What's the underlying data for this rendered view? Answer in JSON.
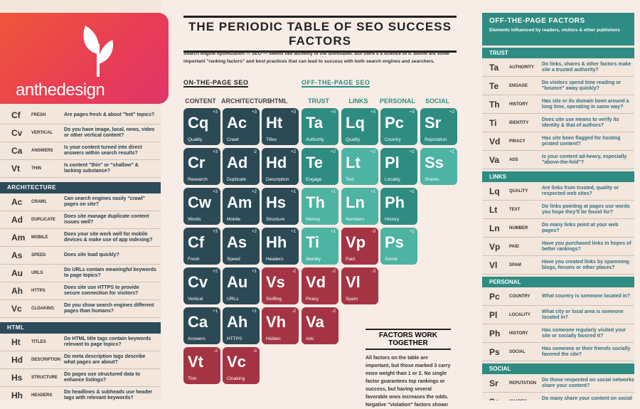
{
  "logo": {
    "text": "anthedesign"
  },
  "title": "THE PERIODIC TABLE OF SEO SUCCESS FACTORS",
  "intro": "Search engine optimization — SEO — seems like alchemy to the uninitiated. But there's a science to it. Below are some important \"ranking factors\" and best practices that can lead to success with both search engines and searchers.",
  "on_page_label": "ON-THE-PAGE SEO",
  "off_page_label": "OFF-THE-PAGE SEO",
  "columns": [
    "CONTENT",
    "ARCHITECTURE",
    "HTML",
    "TRUST",
    "LINKS",
    "PERSONAL",
    "SOCIAL"
  ],
  "colors": {
    "dark": "#2b4a56",
    "teal": "#2f8c82",
    "light": "#4db3a2",
    "red": "#a43444",
    "pink": "#b04a60"
  },
  "elements": [
    {
      "sym": "Cq",
      "word": "Quality",
      "wt": "+3",
      "c": "dk",
      "col": 0,
      "row": 0
    },
    {
      "sym": "Cr",
      "word": "Research",
      "wt": "+3",
      "c": "dk",
      "col": 0,
      "row": 1
    },
    {
      "sym": "Cw",
      "word": "Words",
      "wt": "+3",
      "c": "dk",
      "col": 0,
      "row": 2
    },
    {
      "sym": "Cf",
      "word": "Fresh",
      "wt": "+3",
      "c": "dk",
      "col": 0,
      "row": 3
    },
    {
      "sym": "Cv",
      "word": "Vertical",
      "wt": "+2",
      "c": "dk",
      "col": 0,
      "row": 4
    },
    {
      "sym": "Ca",
      "word": "Answers",
      "wt": "+1",
      "c": "dk",
      "col": 0,
      "row": 5
    },
    {
      "sym": "Vt",
      "word": "Thin",
      "wt": "-2",
      "c": "rd",
      "col": 0,
      "row": 6
    },
    {
      "sym": "Ac",
      "word": "Crawl",
      "wt": "+3",
      "c": "dk",
      "col": 1,
      "row": 0
    },
    {
      "sym": "Ad",
      "word": "Duplicate",
      "wt": "-2",
      "c": "dk",
      "col": 1,
      "row": 1
    },
    {
      "sym": "Am",
      "word": "Mobile",
      "wt": "+2",
      "c": "dk",
      "col": 1,
      "row": 2
    },
    {
      "sym": "As",
      "word": "Speed",
      "wt": "+2",
      "c": "dk",
      "col": 1,
      "row": 3
    },
    {
      "sym": "Au",
      "word": "URLs",
      "wt": "+1",
      "c": "dk",
      "col": 1,
      "row": 4
    },
    {
      "sym": "Ah",
      "word": "HTTPS",
      "wt": "+1",
      "c": "dk",
      "col": 1,
      "row": 5
    },
    {
      "sym": "Vc",
      "word": "Cloaking",
      "wt": "-3",
      "c": "rd",
      "col": 1,
      "row": 6
    },
    {
      "sym": "Ht",
      "word": "Titles",
      "wt": "+3",
      "c": "dk",
      "col": 2,
      "row": 0
    },
    {
      "sym": "Hd",
      "word": "Description",
      "wt": "+2",
      "c": "dk",
      "col": 2,
      "row": 1
    },
    {
      "sym": "Hs",
      "word": "Structure",
      "wt": "+1",
      "c": "dk",
      "col": 2,
      "row": 2
    },
    {
      "sym": "Hh",
      "word": "Headers",
      "wt": "+1",
      "c": "dk",
      "col": 2,
      "row": 3
    },
    {
      "sym": "Vs",
      "word": "Stuffing",
      "wt": "-2",
      "c": "rd",
      "col": 2,
      "row": 4
    },
    {
      "sym": "Vh",
      "word": "Hidden",
      "wt": "-2",
      "c": "rd",
      "col": 2,
      "row": 5
    },
    {
      "sym": "Ta",
      "word": "Authority",
      "wt": "+3",
      "c": "tl",
      "col": 3,
      "row": 0
    },
    {
      "sym": "Te",
      "word": "Engage",
      "wt": "+2",
      "c": "tl",
      "col": 3,
      "row": 1
    },
    {
      "sym": "Th",
      "word": "History",
      "wt": "+1",
      "c": "lt",
      "col": 3,
      "row": 2
    },
    {
      "sym": "Ti",
      "word": "Identity",
      "wt": "+1",
      "c": "lt",
      "col": 3,
      "row": 3
    },
    {
      "sym": "Vd",
      "word": "Piracy",
      "wt": "-2",
      "c": "rd",
      "col": 3,
      "row": 4
    },
    {
      "sym": "Va",
      "word": "Ads",
      "wt": "-2",
      "c": "rd",
      "col": 3,
      "row": 5
    },
    {
      "sym": "Lq",
      "word": "Quality",
      "wt": "+3",
      "c": "tl",
      "col": 4,
      "row": 0
    },
    {
      "sym": "Lt",
      "word": "Text",
      "wt": "+2",
      "c": "lt",
      "col": 4,
      "row": 1
    },
    {
      "sym": "Ln",
      "word": "Numbers",
      "wt": "+1",
      "c": "lt",
      "col": 4,
      "row": 2
    },
    {
      "sym": "Vp",
      "word": "Paid",
      "wt": "-3",
      "c": "rd",
      "col": 4,
      "row": 3
    },
    {
      "sym": "Vl",
      "word": "Spam",
      "wt": "-3",
      "c": "rd",
      "col": 4,
      "row": 4
    },
    {
      "sym": "Pc",
      "word": "Country",
      "wt": "+3",
      "c": "tl",
      "col": 5,
      "row": 0
    },
    {
      "sym": "Pl",
      "word": "Locality",
      "wt": "+2",
      "c": "tl",
      "col": 5,
      "row": 1
    },
    {
      "sym": "Ph",
      "word": "History",
      "wt": "+2",
      "c": "tl",
      "col": 5,
      "row": 2
    },
    {
      "sym": "Ps",
      "word": "Social",
      "wt": "+2",
      "c": "lt",
      "col": 5,
      "row": 3
    },
    {
      "sym": "Sr",
      "word": "Reputation",
      "wt": "+2",
      "c": "tl",
      "col": 6,
      "row": 0
    },
    {
      "sym": "Ss",
      "word": "Shares",
      "wt": "+1",
      "c": "lt",
      "col": 6,
      "row": 1
    }
  ],
  "factors_work_together": {
    "title": "FACTORS WORK TOGETHER",
    "text": "All factors on the table are important, but those marked 3 carry more weight than 1 or 2. No single factor guarantees top rankings or success, but having several favorable ones increases the odds. Negative \"violation\" factors shown"
  },
  "left_panel": {
    "rows_top": [
      {
        "sym": "Cf",
        "name": "FRESH",
        "q": "Are pages fresh & about \"hot\" topics?"
      },
      {
        "sym": "Cv",
        "name": "VERTICAL",
        "q": "Do you have image, local, news, video or other vertical content?"
      },
      {
        "sym": "Ca",
        "name": "ANSWERS",
        "q": "Is your content turned into direct answers within search results?"
      },
      {
        "sym": "Vt",
        "name": "THIN",
        "q": "Is content \"thin\" or \"shallow\" & lacking substance?"
      }
    ],
    "arch_header": "ARCHITECTURE",
    "arch_rows": [
      {
        "sym": "Ac",
        "name": "CRAWL",
        "q": "Can search engines easily \"crawl\" pages on site?"
      },
      {
        "sym": "Ad",
        "name": "DUPLICATE",
        "q": "Does site manage duplicate content issues well?"
      },
      {
        "sym": "Am",
        "name": "MOBILE",
        "q": "Does your site work well for mobile devices & make use of app indexing?"
      },
      {
        "sym": "As",
        "name": "SPEED",
        "q": "Does site load quickly?"
      },
      {
        "sym": "Au",
        "name": "URLS",
        "q": "Do URLs contain meaningful keywords to page topics?"
      },
      {
        "sym": "Ah",
        "name": "HTTPS",
        "q": "Does site use HTTPS to provide secure connection for visitors?"
      },
      {
        "sym": "Vc",
        "name": "CLOAKING",
        "q": "Do you show search engines different pages than humans?"
      }
    ],
    "html_header": "HTML",
    "html_rows": [
      {
        "sym": "Ht",
        "name": "TITLES",
        "q": "Do HTML title tags contain keywords relevant to page topics?"
      },
      {
        "sym": "Hd",
        "name": "DESCRIPTION",
        "q": "Do meta description tags describe what pages are about?"
      },
      {
        "sym": "Hs",
        "name": "STRUCTURE",
        "q": "Do pages use structured data to enhance listings?"
      },
      {
        "sym": "Hh",
        "name": "HEADERS",
        "q": "Do headlines & subheads use header tags with relevant keywords?"
      }
    ]
  },
  "right_panel": {
    "title": "OFF-THE-PAGE FACTORS",
    "subtitle": "Elements influenced by readers, visitors & other publishers",
    "trust_header": "TRUST",
    "trust_rows": [
      {
        "sym": "Ta",
        "name": "AUTHORITY",
        "q": "Do links, shares & other factors make site a trusted authority?"
      },
      {
        "sym": "Te",
        "name": "ENGAGE",
        "q": "Do visitors spend time reading or \"bounce\" away quickly?"
      },
      {
        "sym": "Th",
        "name": "HISTORY",
        "q": "Has site or its domain been around a long time, operating in same way?"
      },
      {
        "sym": "Ti",
        "name": "IDENTITY",
        "q": "Does site use means to verify its identity & that of authors?"
      },
      {
        "sym": "Vd",
        "name": "PIRACY",
        "q": "Has site been flagged for hosting pirated content?"
      },
      {
        "sym": "Va",
        "name": "ADS",
        "q": "Is your content ad-heavy, especially \"above-the-fold\"?"
      }
    ],
    "links_header": "LINKS",
    "links_rows": [
      {
        "sym": "Lq",
        "name": "QUALITY",
        "q": "Are links from trusted, quality or respected web sites?"
      },
      {
        "sym": "Lt",
        "name": "TEXT",
        "q": "Do links pointing at pages use words you hope they'll be found for?"
      },
      {
        "sym": "Ln",
        "name": "NUMBER",
        "q": "Do many links point at your web pages?"
      },
      {
        "sym": "Vp",
        "name": "PAID",
        "q": "Have you purchased links in hopes of better rankings?"
      },
      {
        "sym": "Vl",
        "name": "SPAM",
        "q": "Have you created links by spamming blogs, forums or other places?"
      }
    ],
    "personal_header": "PERSONAL",
    "personal_rows": [
      {
        "sym": "Pc",
        "name": "COUNTRY",
        "q": "What country is someone located in?"
      },
      {
        "sym": "Pl",
        "name": "LOCALITY",
        "q": "What city or local area is someone located in?"
      },
      {
        "sym": "Ph",
        "name": "HISTORY",
        "q": "Has someone regularly visited your site or socially favored it?"
      },
      {
        "sym": "Ps",
        "name": "SOCIAL",
        "q": "Has someone or their friends socially favored the site?"
      }
    ],
    "social_header": "SOCIAL",
    "social_rows": [
      {
        "sym": "Sr",
        "name": "REPUTATION",
        "q": "Do those respected on social networks share your content?"
      },
      {
        "sym": "Ss",
        "name": "SHARES",
        "q": "Do many share your content on social networks?"
      }
    ]
  }
}
